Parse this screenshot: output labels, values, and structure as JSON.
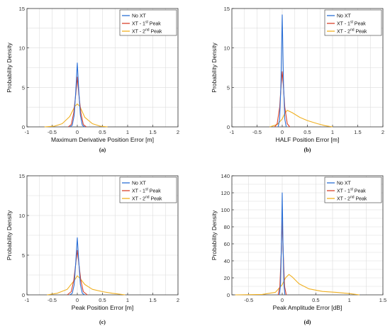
{
  "figure": {
    "legend_entries": [
      {
        "text": "No XT",
        "sup": "",
        "suffix": ""
      },
      {
        "text": "XT - 1",
        "sup": "st",
        "suffix": " Peak"
      },
      {
        "text": "XT - 2",
        "sup": "nd",
        "suffix": " Peak"
      }
    ],
    "colors": {
      "no_xt": "#2b6fd6",
      "xt1": "#d9412b",
      "xt2": "#f0b021"
    }
  },
  "chart_data": [
    {
      "type": "line",
      "caption": "(a)",
      "xlabel": "Maximum Derivative Position Error [m]",
      "ylabel": "Probability Density",
      "xlim": [
        -1,
        2
      ],
      "ylim": [
        0,
        15
      ],
      "xticks": [
        -1,
        -0.5,
        0,
        0.5,
        1,
        1.5,
        2
      ],
      "xtick_labels": [
        "-1",
        "-0.5",
        "0",
        "0.5",
        "1",
        "1.5",
        "2"
      ],
      "yticks": [
        0,
        5,
        10,
        15
      ],
      "ytick_labels": [
        "0",
        "5",
        "10",
        "15"
      ],
      "legend": "top-right",
      "grid": true,
      "series": [
        {
          "name": "No XT",
          "color_key": "no_xt",
          "x": [
            -0.15,
            -0.1,
            -0.06,
            -0.03,
            0,
            0.03,
            0.06,
            0.1,
            0.15
          ],
          "y": [
            0,
            0.2,
            1.5,
            4.6,
            8.1,
            4.6,
            1.5,
            0.2,
            0
          ]
        },
        {
          "name": "XT - 1st Peak",
          "color_key": "xt1",
          "x": [
            -0.18,
            -0.12,
            -0.07,
            -0.03,
            0,
            0.03,
            0.07,
            0.12,
            0.18
          ],
          "y": [
            0,
            0.3,
            1.8,
            4.2,
            6.3,
            4.2,
            1.8,
            0.3,
            0
          ]
        },
        {
          "name": "XT - 2nd Peak",
          "color_key": "xt2",
          "x": [
            -0.65,
            -0.45,
            -0.3,
            -0.15,
            -0.05,
            0,
            0.05,
            0.15,
            0.3,
            0.45,
            0.6
          ],
          "y": [
            0,
            0.1,
            0.4,
            1.3,
            2.6,
            2.9,
            2.6,
            1.2,
            0.4,
            0.1,
            0
          ]
        }
      ]
    },
    {
      "type": "line",
      "caption": "(b)",
      "xlabel": "HALF Position Error [m]",
      "ylabel": "Probability Density",
      "xlim": [
        -1,
        2
      ],
      "ylim": [
        0,
        15
      ],
      "xticks": [
        -1,
        -0.5,
        0,
        0.5,
        1,
        1.5,
        2
      ],
      "xtick_labels": [
        "-1",
        "-0.5",
        "0",
        "0.5",
        "1",
        "1.5",
        "2"
      ],
      "yticks": [
        0,
        5,
        10,
        15
      ],
      "ytick_labels": [
        "0",
        "5",
        "10",
        "15"
      ],
      "legend": "top-right",
      "grid": true,
      "series": [
        {
          "name": "No XT",
          "color_key": "no_xt",
          "x": [
            -0.08,
            -0.05,
            -0.025,
            0,
            0.025,
            0.05,
            0.08
          ],
          "y": [
            0,
            1,
            5.5,
            14.2,
            5.5,
            1,
            0
          ]
        },
        {
          "name": "XT - 1st Peak",
          "color_key": "xt1",
          "x": [
            -0.15,
            -0.1,
            -0.05,
            -0.02,
            0,
            0.02,
            0.05,
            0.1,
            0.15
          ],
          "y": [
            0,
            0.4,
            2.5,
            5.5,
            7,
            5.5,
            2.5,
            0.4,
            0
          ]
        },
        {
          "name": "XT - 2nd Peak",
          "color_key": "xt2",
          "x": [
            -0.25,
            -0.1,
            0,
            0.05,
            0.1,
            0.2,
            0.35,
            0.5,
            0.7,
            0.85,
            1.0
          ],
          "y": [
            0,
            0.3,
            1,
            1.7,
            2.1,
            1.8,
            1.2,
            0.8,
            0.4,
            0.15,
            0
          ]
        }
      ]
    },
    {
      "type": "line",
      "caption": "(c)",
      "xlabel": "Peak Position Error [m]",
      "ylabel": "Probability Density",
      "xlim": [
        -1,
        2
      ],
      "ylim": [
        0,
        15
      ],
      "xticks": [
        -1,
        -0.5,
        0,
        0.5,
        1,
        1.5,
        2
      ],
      "xtick_labels": [
        "-1",
        "-0.5",
        "0",
        "0.5",
        "1",
        "1.5",
        "2"
      ],
      "yticks": [
        0,
        5,
        10,
        15
      ],
      "ytick_labels": [
        "0",
        "5",
        "10",
        "15"
      ],
      "legend": "top-right",
      "grid": true,
      "series": [
        {
          "name": "No XT",
          "color_key": "no_xt",
          "x": [
            -0.15,
            -0.1,
            -0.06,
            -0.03,
            0,
            0.03,
            0.06,
            0.1,
            0.15
          ],
          "y": [
            0,
            0.2,
            1.3,
            4.2,
            7.2,
            4.2,
            1.3,
            0.2,
            0
          ]
        },
        {
          "name": "XT - 1st Peak",
          "color_key": "xt1",
          "x": [
            -0.2,
            -0.12,
            -0.07,
            -0.03,
            0,
            0.03,
            0.07,
            0.12,
            0.2
          ],
          "y": [
            0,
            0.4,
            1.8,
            4.0,
            5.6,
            4.0,
            1.8,
            0.4,
            0
          ]
        },
        {
          "name": "XT - 2nd Peak",
          "color_key": "xt2",
          "x": [
            -0.6,
            -0.4,
            -0.2,
            -0.05,
            0,
            0.05,
            0.15,
            0.3,
            0.5,
            0.7,
            0.95
          ],
          "y": [
            0,
            0.2,
            0.7,
            1.9,
            2.4,
            2.1,
            1.3,
            0.7,
            0.4,
            0.2,
            0
          ]
        }
      ]
    },
    {
      "type": "line",
      "caption": "(d)",
      "xlabel": "Peak Amplitude Error [dB]",
      "ylabel": "Probability Density",
      "xlim": [
        -0.75,
        1.5
      ],
      "ylim": [
        0,
        140
      ],
      "xticks": [
        -0.5,
        0,
        0.5,
        1,
        1.5
      ],
      "xtick_labels": [
        "-0.5",
        "0",
        "0.5",
        "1",
        "1.5"
      ],
      "yticks": [
        0,
        20,
        40,
        60,
        80,
        100,
        120,
        140
      ],
      "ytick_labels": [
        "0",
        "20",
        "40",
        "60",
        "80",
        "100",
        "120",
        "140"
      ],
      "legend": "top-right",
      "grid": true,
      "series": [
        {
          "name": "No XT",
          "color_key": "no_xt",
          "x": [
            -0.04,
            -0.025,
            -0.012,
            0,
            0.012,
            0.025,
            0.04
          ],
          "y": [
            0,
            12,
            60,
            120,
            60,
            12,
            0
          ]
        },
        {
          "name": "XT - 1st Peak",
          "color_key": "xt1",
          "x": [
            -0.06,
            -0.035,
            -0.015,
            0,
            0.015,
            0.035,
            0.06
          ],
          "y": [
            0,
            10,
            50,
            88,
            50,
            10,
            0
          ]
        },
        {
          "name": "XT - 2nd Peak",
          "color_key": "xt2",
          "x": [
            -0.7,
            -0.3,
            -0.1,
            0,
            0.05,
            0.1,
            0.15,
            0.25,
            0.4,
            0.6,
            0.8,
            1.0,
            1.15
          ],
          "y": [
            0,
            0.5,
            3,
            12,
            20,
            24,
            21,
            13,
            7,
            4,
            3,
            1.5,
            0
          ]
        }
      ]
    }
  ]
}
